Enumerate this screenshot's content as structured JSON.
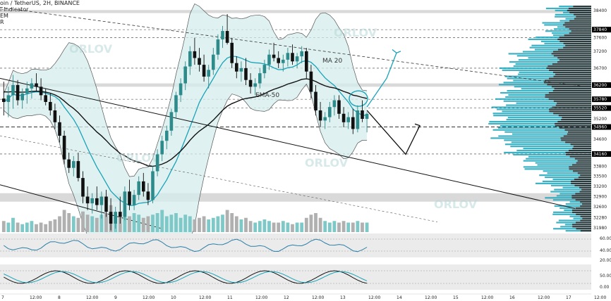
{
  "header": {
    "symbol_line": "oin / TetherUS, 2H, BINANCE",
    "line2": "i-Indicator",
    "line3": "EM",
    "line4": "R"
  },
  "watermark": "ORLOV",
  "chart_data": {
    "type": "candlestick",
    "title": "",
    "price_axis": {
      "labels": [
        "38400",
        "37840",
        "37600",
        "37200",
        "36700",
        "36200",
        "35780",
        "35520",
        "35200",
        "34960",
        "34600",
        "34160",
        "33800",
        "33500",
        "33200",
        "32900",
        "32600",
        "32280",
        "31980"
      ],
      "highlighted": [
        "37840",
        "36200",
        "35780",
        "35520",
        "34960",
        "34160"
      ],
      "range": [
        31850,
        38550
      ]
    },
    "time_axis": {
      "labels": [
        "7",
        "12:00",
        "8",
        "12:00",
        "9",
        "12:00",
        "10",
        "12:00",
        "11",
        "12:00",
        "12",
        "12:00",
        "13",
        "12:00",
        "14",
        "12:00",
        "15",
        "12:00",
        "16",
        "12:00",
        "17",
        "12:00"
      ]
    },
    "annotations": {
      "ma": "MA 20",
      "ema": "EMA-50"
    },
    "candles": [
      [
        35800,
        36300,
        35300,
        35700
      ],
      [
        35700,
        36150,
        35250,
        35900
      ],
      [
        35900,
        36500,
        35500,
        36200
      ],
      [
        36200,
        36350,
        35600,
        35750
      ],
      [
        35750,
        36100,
        35500,
        35950
      ],
      [
        35950,
        36300,
        35650,
        36100
      ],
      [
        36100,
        36400,
        35800,
        36250
      ],
      [
        36250,
        36550,
        36000,
        36150
      ],
      [
        36150,
        36400,
        35750,
        35900
      ],
      [
        35900,
        36100,
        35600,
        35700
      ],
      [
        35700,
        35950,
        35300,
        35450
      ],
      [
        35450,
        35650,
        34900,
        35100
      ],
      [
        35100,
        35300,
        34500,
        34700
      ],
      [
        34700,
        34850,
        33850,
        34000
      ],
      [
        34000,
        34200,
        33600,
        33750
      ],
      [
        33750,
        34100,
        33500,
        33950
      ],
      [
        33950,
        34200,
        33350,
        33450
      ],
      [
        33450,
        33650,
        32700,
        32900
      ],
      [
        32900,
        33200,
        32500,
        32700
      ],
      [
        32700,
        33000,
        32400,
        32850
      ],
      [
        32850,
        33200,
        32500,
        32650
      ],
      [
        32650,
        33050,
        32250,
        32900
      ],
      [
        32900,
        33100,
        32300,
        32450
      ],
      [
        32450,
        32850,
        31900,
        32100
      ],
      [
        32100,
        32600,
        31950,
        32450
      ],
      [
        32450,
        32900,
        32100,
        32300
      ],
      [
        32300,
        33200,
        32200,
        33050
      ],
      [
        33050,
        33400,
        32500,
        32650
      ],
      [
        32650,
        33100,
        32500,
        32950
      ],
      [
        32950,
        33500,
        32800,
        33350
      ],
      [
        33350,
        33600,
        32900,
        33050
      ],
      [
        33050,
        33300,
        32650,
        32800
      ],
      [
        32800,
        33800,
        32700,
        33650
      ],
      [
        33650,
        34300,
        33500,
        34150
      ],
      [
        34150,
        34700,
        33950,
        34550
      ],
      [
        34550,
        35000,
        34300,
        34850
      ],
      [
        34850,
        35500,
        34700,
        35400
      ],
      [
        35400,
        36000,
        35200,
        35900
      ],
      [
        35900,
        36400,
        35700,
        36250
      ],
      [
        36250,
        36900,
        36050,
        36750
      ],
      [
        36750,
        37350,
        36500,
        37200
      ],
      [
        37200,
        37600,
        36800,
        37000
      ],
      [
        37000,
        37300,
        36600,
        36800
      ],
      [
        36800,
        37100,
        36300,
        36450
      ],
      [
        36450,
        36800,
        36100,
        36650
      ],
      [
        36650,
        37300,
        36500,
        37100
      ],
      [
        37100,
        37700,
        36950,
        37550
      ],
      [
        37550,
        37950,
        37300,
        37800
      ],
      [
        37800,
        38300,
        37400,
        37450
      ],
      [
        37450,
        37600,
        36700,
        36850
      ],
      [
        36850,
        37050,
        36400,
        36600
      ],
      [
        36600,
        36900,
        36300,
        36700
      ],
      [
        36700,
        37000,
        36200,
        36350
      ],
      [
        36350,
        36550,
        35950,
        36150
      ],
      [
        36150,
        36400,
        35900,
        36250
      ],
      [
        36250,
        36700,
        36100,
        36550
      ],
      [
        36550,
        36950,
        36400,
        36800
      ],
      [
        36800,
        37250,
        36650,
        37100
      ],
      [
        37100,
        37450,
        36900,
        37000
      ],
      [
        37000,
        37200,
        36700,
        36850
      ],
      [
        36850,
        37100,
        36600,
        36950
      ],
      [
        36950,
        37300,
        36750,
        37150
      ],
      [
        37150,
        37400,
        36800,
        36900
      ],
      [
        36900,
        37150,
        36700,
        37050
      ],
      [
        37050,
        37350,
        36850,
        37200
      ],
      [
        37200,
        37300,
        36400,
        36600
      ],
      [
        36600,
        36800,
        35800,
        36000
      ],
      [
        36000,
        36200,
        35300,
        35450
      ],
      [
        35450,
        35700,
        34950,
        35150
      ],
      [
        35150,
        35400,
        34900,
        35250
      ],
      [
        35250,
        35700,
        35100,
        35550
      ],
      [
        35550,
        35900,
        35300,
        35750
      ],
      [
        35750,
        35900,
        35200,
        35350
      ],
      [
        35350,
        35550,
        34950,
        35100
      ],
      [
        35100,
        35400,
        34900,
        35250
      ],
      [
        35250,
        35500,
        34750,
        34900
      ],
      [
        34900,
        35600,
        34800,
        35450
      ],
      [
        35450,
        35750,
        35100,
        35200
      ],
      [
        35200,
        35400,
        34800,
        35350
      ]
    ],
    "volume": [
      0.35,
      0.3,
      0.45,
      0.3,
      0.25,
      0.3,
      0.35,
      0.25,
      0.3,
      0.25,
      0.35,
      0.4,
      0.5,
      0.7,
      0.6,
      0.5,
      0.45,
      0.65,
      0.55,
      0.5,
      0.45,
      0.55,
      0.6,
      0.85,
      0.5,
      0.55,
      0.7,
      0.5,
      0.6,
      0.55,
      0.45,
      0.5,
      0.55,
      0.6,
      0.7,
      0.5,
      0.55,
      0.6,
      0.45,
      0.55,
      0.5,
      0.4,
      0.45,
      0.5,
      0.4,
      0.45,
      0.5,
      0.55,
      0.7,
      0.6,
      0.5,
      0.4,
      0.45,
      0.35,
      0.3,
      0.35,
      0.4,
      0.35,
      0.3,
      0.3,
      0.35,
      0.3,
      0.25,
      0.3,
      0.3,
      0.45,
      0.55,
      0.6,
      0.45,
      0.35,
      0.3,
      0.35,
      0.3,
      0.35,
      0.3,
      0.3,
      0.35,
      0.3,
      0.3
    ],
    "panel1_axis": [
      "60.00",
      "40.00",
      "20.00"
    ],
    "panel2_axis": [
      "50.00",
      "0.00"
    ]
  },
  "colors": {
    "up": "#2e8b8b",
    "down": "#111111",
    "band_fill": "#d4ecec",
    "accent": "#1aa3b8",
    "profile": "#1aa3b8",
    "highlight_label": "#000000"
  }
}
